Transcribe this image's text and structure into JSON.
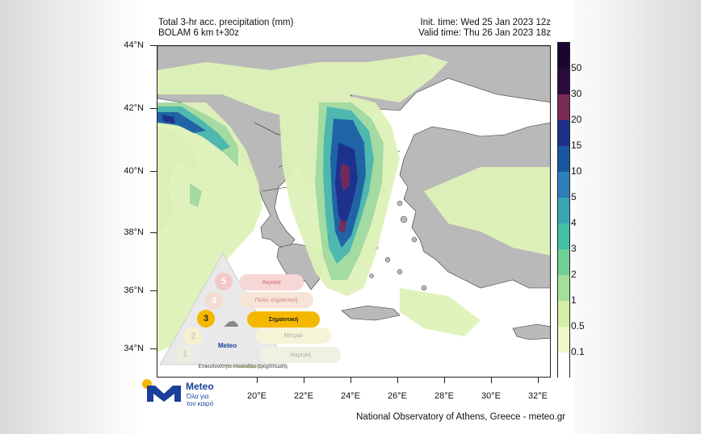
{
  "header": {
    "title_line1": "Total 3-hr acc. precipitation (mm)",
    "title_line2": "BOLAM 6 km t+30z",
    "init_time": "Init. time: Wed 25 Jan 2023 12z",
    "valid_time": "Valid time: Thu 26 Jan 2023 18z"
  },
  "axes": {
    "lat_labels": [
      "44°N",
      "42°N",
      "40°N",
      "38°N",
      "36°N",
      "34°N"
    ],
    "lon_labels": [
      "20°E",
      "22°E",
      "24°E",
      "26°E",
      "28°E",
      "30°E",
      "32°E"
    ]
  },
  "colorbar": {
    "labels": [
      "50",
      "30",
      "20",
      "15",
      "10",
      "5",
      "4",
      "3",
      "2",
      "1",
      "0.5",
      "0.1"
    ],
    "colors": [
      "#2a0b3d",
      "#7a2a57",
      "#1e2f8a",
      "#18579f",
      "#2f7fb9",
      "#3aa6b5",
      "#43bfa5",
      "#6fd093",
      "#a4e09a",
      "#d3efa5",
      "#f0f6c8",
      "#ffffff"
    ]
  },
  "warning_scale": {
    "levels": [
      {
        "num": "5",
        "label": "Ακραία"
      },
      {
        "num": "4",
        "label": "Πολύ σημαντική"
      },
      {
        "num": "3",
        "label": "Σημαντική"
      },
      {
        "num": "2",
        "label": "Μέτρια"
      },
      {
        "num": "1",
        "label": "Χαμηλή"
      }
    ],
    "active_level": "3",
    "brand": "Meteo",
    "caption": "Επικινδυνότητα επεισοδίου βροχόπτωσης"
  },
  "logo": {
    "name": "Meteo",
    "tagline": "Όλα για τον καιρό"
  },
  "footer": "National Observatory of Athens, Greece - meteo.gr"
}
